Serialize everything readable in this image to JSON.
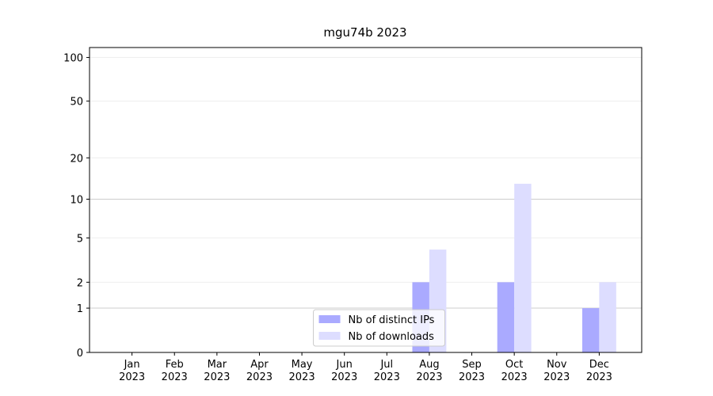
{
  "chart_data": {
    "type": "bar",
    "title": "mgu74b 2023",
    "categories": [
      "Jan\n2023",
      "Feb\n2023",
      "Mar\n2023",
      "Apr\n2023",
      "May\n2023",
      "Jun\n2023",
      "Jul\n2023",
      "Aug\n2023",
      "Sep\n2023",
      "Oct\n2023",
      "Nov\n2023",
      "Dec\n2023"
    ],
    "series": [
      {
        "name": "Nb of distinct IPs",
        "color": "#aaaaff",
        "values": [
          0,
          0,
          0,
          0,
          0,
          0,
          0,
          2,
          0,
          2,
          0,
          1
        ]
      },
      {
        "name": "Nb of downloads",
        "color": "#ddddff",
        "values": [
          0,
          0,
          0,
          0,
          0,
          0,
          0,
          4,
          0,
          13,
          0,
          2
        ]
      }
    ],
    "yscale": "log1p",
    "ylim": [
      0,
      117
    ],
    "yticks": [
      0,
      1,
      2,
      5,
      10,
      20,
      50,
      100
    ],
    "grid": true,
    "legend": "lower center"
  }
}
